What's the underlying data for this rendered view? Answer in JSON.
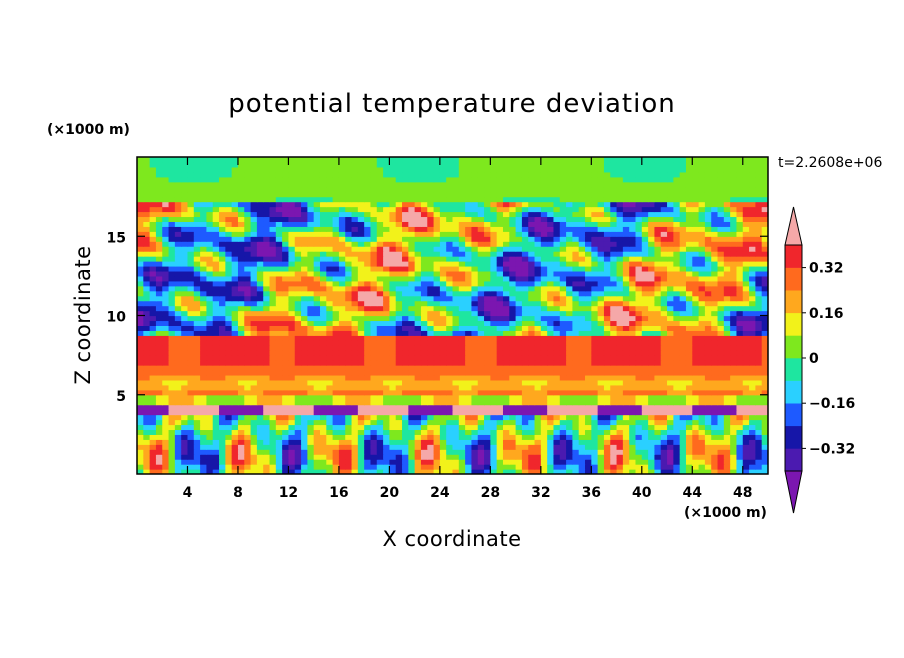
{
  "chart_data": {
    "type": "heatmap",
    "title": "potential temperature deviation",
    "xlabel": "X coordinate",
    "ylabel": "Z coordinate",
    "x_unit": "(×1000 m)",
    "y_unit": "(×1000 m)",
    "time_label": "t=2.2608e+06",
    "xlim": [
      0,
      50
    ],
    "ylim": [
      0,
      20
    ],
    "x_ticks": [
      4,
      8,
      12,
      16,
      20,
      24,
      28,
      32,
      36,
      40,
      44,
      48
    ],
    "y_ticks": [
      5,
      10,
      15
    ],
    "colorbar": {
      "levels": [
        -0.4,
        -0.32,
        -0.24,
        -0.16,
        -0.08,
        0,
        0.08,
        0.16,
        0.24,
        0.32,
        0.4
      ],
      "tick_values": [
        -0.32,
        -0.16,
        0,
        0.16,
        0.32
      ],
      "tick_labels": [
        "−0.32",
        "−0.16",
        "0",
        "0.16",
        "0.32"
      ],
      "colors": [
        "#7b16b0",
        "#4b1ab0",
        "#1616a8",
        "#1e5aff",
        "#2ad0ff",
        "#1ee6a0",
        "#7ee81e",
        "#f2f21a",
        "#ffa81e",
        "#ff6a1e",
        "#f0262c",
        "#f5a8a8"
      ],
      "extend": "both"
    },
    "z_description_bands": [
      {
        "z_range": [
          0,
          4
        ],
        "pattern": "mixed vertical plumes"
      },
      {
        "z_range": [
          4,
          4.5
        ],
        "values_range": [
          -0.4,
          0.4
        ]
      },
      {
        "z_range": [
          5,
          6.5
        ],
        "values_range": [
          0.24,
          0.4
        ]
      },
      {
        "z_range": [
          7,
          8.5
        ],
        "values_range": [
          0.32,
          0.4
        ]
      },
      {
        "z_range": [
          9,
          17
        ],
        "pattern": "layered eddies"
      },
      {
        "z_range": [
          17,
          20
        ],
        "values_range": [
          0,
          0.08
        ]
      }
    ]
  }
}
